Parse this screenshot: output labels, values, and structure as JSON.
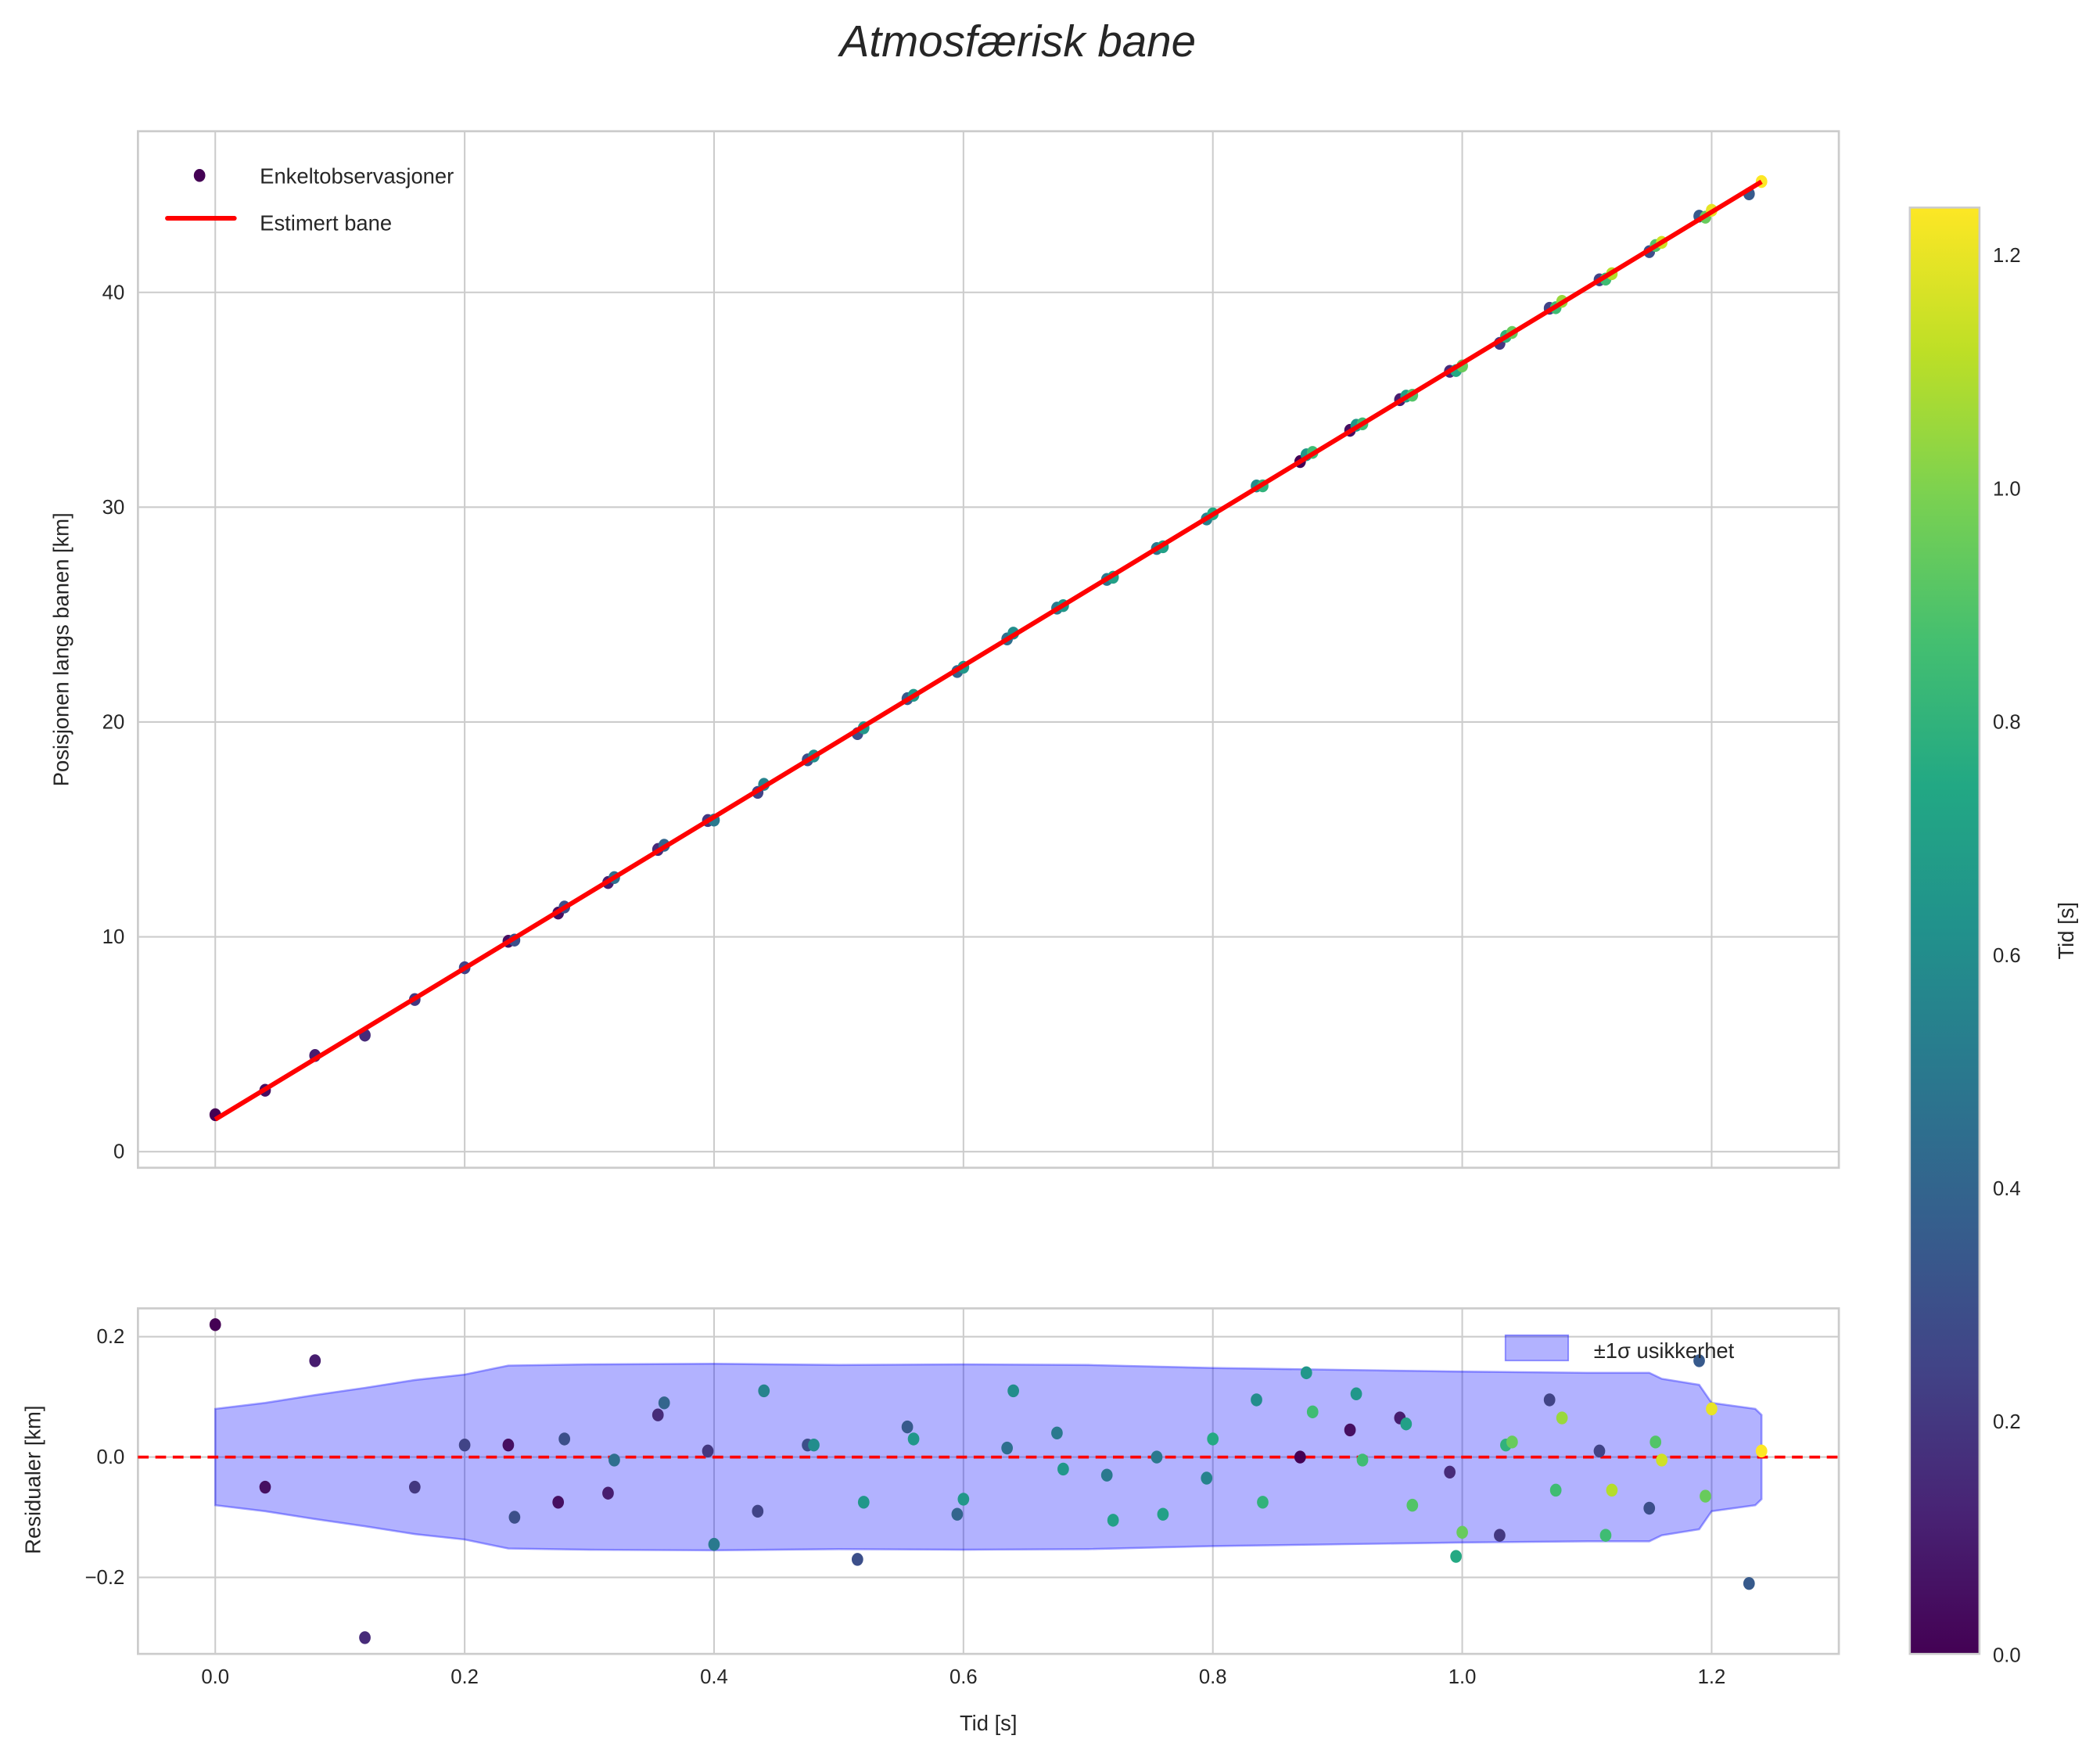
{
  "title": "Atmosfærisk bane",
  "chart_data": [
    {
      "type": "scatter",
      "name": "main",
      "ylabel": "Posisjonen langs banen [km]",
      "xlim": [
        -0.062,
        1.302
      ],
      "ylim": [
        -0.75,
        47.5
      ],
      "yticks": [
        0,
        10,
        20,
        30,
        40
      ],
      "xticks": [
        0.0,
        0.2,
        0.4,
        0.6,
        0.8,
        1.0,
        1.2
      ],
      "grid": true,
      "legend": {
        "placement": "top-left",
        "scatter_label": "Enkeltobservasjoner",
        "line_label": "Estimert bane"
      },
      "fit_line": {
        "intercept": 1.5,
        "slope": 35.2,
        "t_range": [
          0,
          1.24
        ],
        "color": "#ff0000"
      },
      "note": "observations = fit line + residuals"
    },
    {
      "type": "scatter",
      "name": "residuals",
      "xlabel": "Tid [s]",
      "ylabel": "Residualer [km]",
      "xlim": [
        -0.062,
        1.302
      ],
      "ylim": [
        -0.327,
        0.247
      ],
      "yticks": [
        -0.2,
        0.0,
        0.2
      ],
      "ytick_labels": [
        "−0.2",
        "0.0",
        "0.2"
      ],
      "xticks": [
        0.0,
        0.2,
        0.4,
        0.6,
        0.8,
        1.0,
        1.2
      ],
      "xtick_labels": [
        "0.0",
        "0.2",
        "0.4",
        "0.6",
        "0.8",
        "1.0",
        "1.2"
      ],
      "zero_line_color": "#ff0000",
      "band_label": "±1σ usikkerhet",
      "band_color": "#0000ff",
      "band": {
        "t": [
          0,
          0.04,
          0.08,
          0.12,
          0.16,
          0.2,
          0.235,
          0.3,
          0.4,
          0.5,
          0.6,
          0.7,
          0.8,
          0.9,
          1.0,
          1.1,
          1.15,
          1.16,
          1.19,
          1.2,
          1.235,
          1.24
        ],
        "sigma": [
          0.08,
          0.09,
          0.103,
          0.115,
          0.128,
          0.137,
          0.152,
          0.154,
          0.155,
          0.153,
          0.154,
          0.153,
          0.148,
          0.145,
          0.142,
          0.14,
          0.14,
          0.13,
          0.12,
          0.09,
          0.08,
          0.07
        ]
      },
      "points": [
        [
          0,
          0.22,
          0.0
        ],
        [
          0.04,
          -0.05,
          0.05
        ],
        [
          0.08,
          0.16,
          0.1
        ],
        [
          0.12,
          -0.3,
          0.15
        ],
        [
          0.16,
          -0.05,
          0.2
        ],
        [
          0.2,
          0.02,
          0.25
        ],
        [
          0.235,
          0.02,
          0.05
        ],
        [
          0.24,
          -0.1,
          0.3
        ],
        [
          0.275,
          -0.075,
          0.05
        ],
        [
          0.28,
          0.03,
          0.3
        ],
        [
          0.315,
          -0.06,
          0.1
        ],
        [
          0.32,
          -0.005,
          0.45
        ],
        [
          0.355,
          0.07,
          0.15
        ],
        [
          0.36,
          0.09,
          0.4
        ],
        [
          0.395,
          0.01,
          0.2
        ],
        [
          0.4,
          -0.145,
          0.5
        ],
        [
          0.435,
          -0.09,
          0.25
        ],
        [
          0.44,
          0.11,
          0.55
        ],
        [
          0.475,
          0.02,
          0.3
        ],
        [
          0.48,
          0.02,
          0.6
        ],
        [
          0.515,
          -0.17,
          0.3
        ],
        [
          0.52,
          -0.075,
          0.65
        ],
        [
          0.555,
          0.05,
          0.35
        ],
        [
          0.56,
          0.03,
          0.65
        ],
        [
          0.595,
          -0.095,
          0.4
        ],
        [
          0.6,
          -0.07,
          0.65
        ],
        [
          0.635,
          0.015,
          0.45
        ],
        [
          0.64,
          0.11,
          0.6
        ],
        [
          0.675,
          0.04,
          0.5
        ],
        [
          0.68,
          -0.02,
          0.65
        ],
        [
          0.715,
          -0.03,
          0.5
        ],
        [
          0.72,
          -0.105,
          0.7
        ],
        [
          0.755,
          0.0,
          0.5
        ],
        [
          0.76,
          -0.095,
          0.7
        ],
        [
          0.795,
          -0.035,
          0.55
        ],
        [
          0.8,
          0.03,
          0.75
        ],
        [
          0.835,
          0.095,
          0.6
        ],
        [
          0.84,
          -0.075,
          0.8
        ],
        [
          0.87,
          0.0,
          0.0
        ],
        [
          0.875,
          0.14,
          0.65
        ],
        [
          0.88,
          0.075,
          0.85
        ],
        [
          0.91,
          0.045,
          0.05
        ],
        [
          0.915,
          0.105,
          0.65
        ],
        [
          0.92,
          -0.005,
          0.85
        ],
        [
          0.95,
          0.065,
          0.1
        ],
        [
          0.955,
          0.055,
          0.7
        ],
        [
          0.96,
          -0.08,
          0.9
        ],
        [
          0.99,
          -0.025,
          0.15
        ],
        [
          0.995,
          -0.165,
          0.75
        ],
        [
          1.0,
          -0.125,
          0.95
        ],
        [
          1.03,
          -0.13,
          0.2
        ],
        [
          1.035,
          0.02,
          0.8
        ],
        [
          1.04,
          0.025,
          0.95
        ],
        [
          1.07,
          0.095,
          0.25
        ],
        [
          1.075,
          -0.055,
          0.85
        ],
        [
          1.08,
          0.065,
          1.05
        ],
        [
          1.11,
          0.01,
          0.25
        ],
        [
          1.115,
          -0.13,
          0.85
        ],
        [
          1.12,
          -0.055,
          1.1
        ],
        [
          1.15,
          -0.085,
          0.3
        ],
        [
          1.155,
          0.025,
          0.9
        ],
        [
          1.16,
          -0.005,
          1.15
        ],
        [
          1.19,
          0.16,
          0.35
        ],
        [
          1.195,
          -0.065,
          0.95
        ],
        [
          1.2,
          0.08,
          1.2
        ],
        [
          1.23,
          -0.21,
          0.35
        ],
        [
          1.24,
          0.01,
          1.24
        ]
      ]
    }
  ],
  "colorbar": {
    "label": "Tid [s]",
    "range": [
      0,
      1.24
    ],
    "ticks": [
      0.0,
      0.2,
      0.4,
      0.6,
      0.8,
      1.0,
      1.2
    ],
    "tick_labels": [
      "0.0",
      "0.2",
      "0.4",
      "0.6",
      "0.8",
      "1.0",
      "1.2"
    ],
    "colormap": "viridis",
    "stops": [
      "#440154",
      "#482475",
      "#414487",
      "#355f8d",
      "#2a788e",
      "#21918c",
      "#22a884",
      "#44bf70",
      "#7ad151",
      "#bddf26",
      "#fde725"
    ]
  }
}
